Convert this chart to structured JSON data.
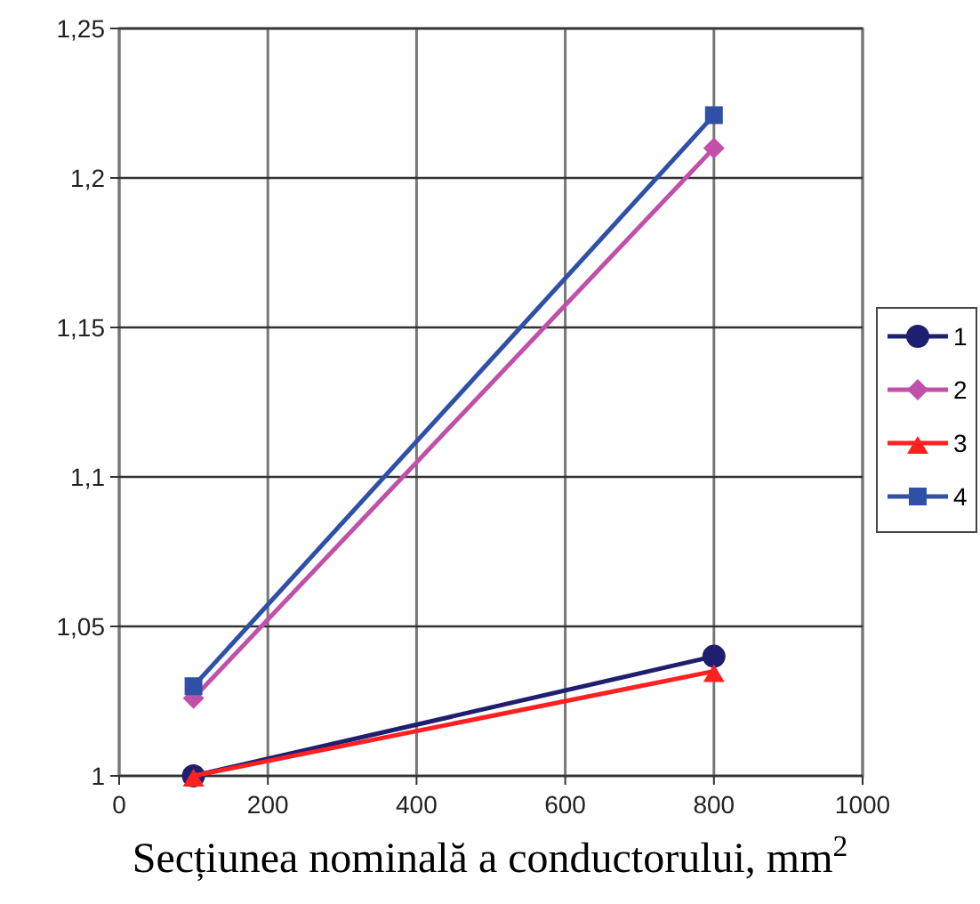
{
  "chart_data": {
    "type": "line",
    "xlabel": "Secțiunea nominală a conductorului, mm$^{2}$",
    "x": [
      100,
      800
    ],
    "series": [
      {
        "name": "1",
        "color": "#1f1f70",
        "values": [
          1.0,
          1.04
        ],
        "marker": "circle"
      },
      {
        "name": "2",
        "color": "#c050a8",
        "values": [
          1.026,
          1.21
        ],
        "marker": "diamond"
      },
      {
        "name": "3",
        "color": "#ff2020",
        "values": [
          1.0,
          1.035
        ],
        "marker": "triangle"
      },
      {
        "name": "4",
        "color": "#3050a8",
        "values": [
          1.03,
          1.221
        ],
        "marker": "square"
      }
    ],
    "xlim": [
      0,
      1000
    ],
    "xticks": [
      0,
      200,
      400,
      600,
      800,
      1000
    ],
    "ylim": [
      1,
      1.25
    ],
    "yticks": [
      {
        "value": 1,
        "label": "1"
      },
      {
        "value": 1.05,
        "label": "1,05"
      },
      {
        "value": 1.1,
        "label": "1,1"
      },
      {
        "value": 1.15,
        "label": "1,15"
      },
      {
        "value": 1.2,
        "label": "1,2"
      },
      {
        "value": 1.25,
        "label": "1,25"
      }
    ],
    "grid": true,
    "legend": "right",
    "line_style": "solid"
  }
}
